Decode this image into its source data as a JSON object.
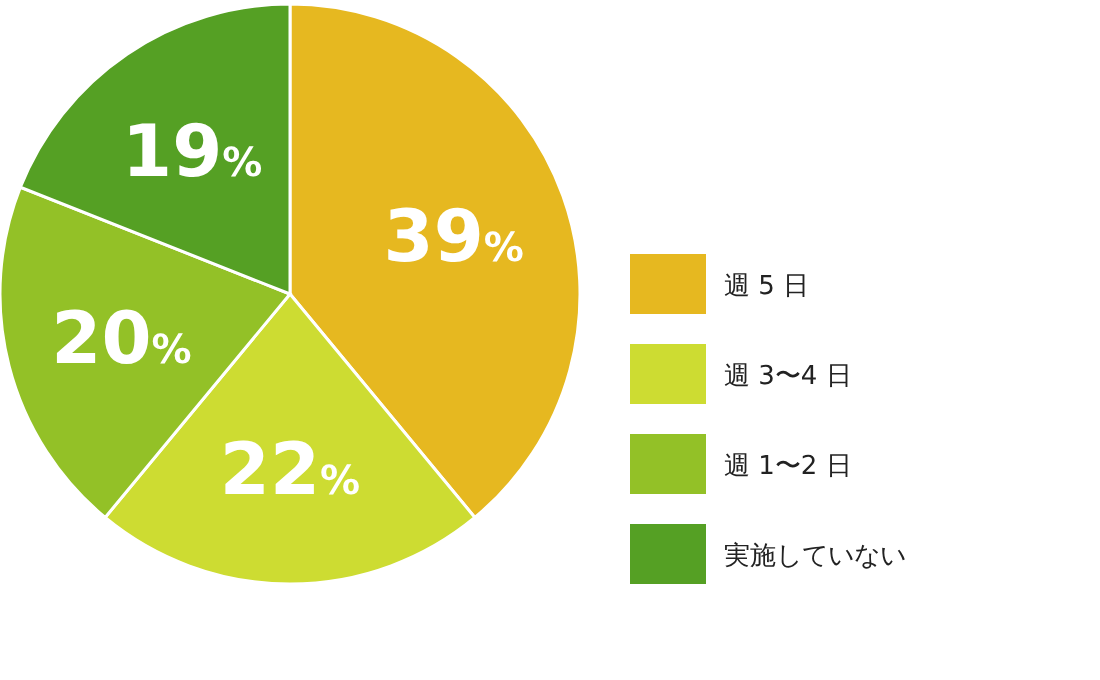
{
  "chart_data": {
    "type": "pie",
    "categories": [
      "週 5 日",
      "週 3〜4 日",
      "週 1〜2 日",
      "実施していない"
    ],
    "values": [
      39,
      22,
      20,
      19
    ],
    "colors": [
      "#e6b820",
      "#cddc32",
      "#93c127",
      "#55a024"
    ],
    "value_labels": [
      "39%",
      "22%",
      "20%",
      "19%"
    ],
    "legend": "right"
  }
}
